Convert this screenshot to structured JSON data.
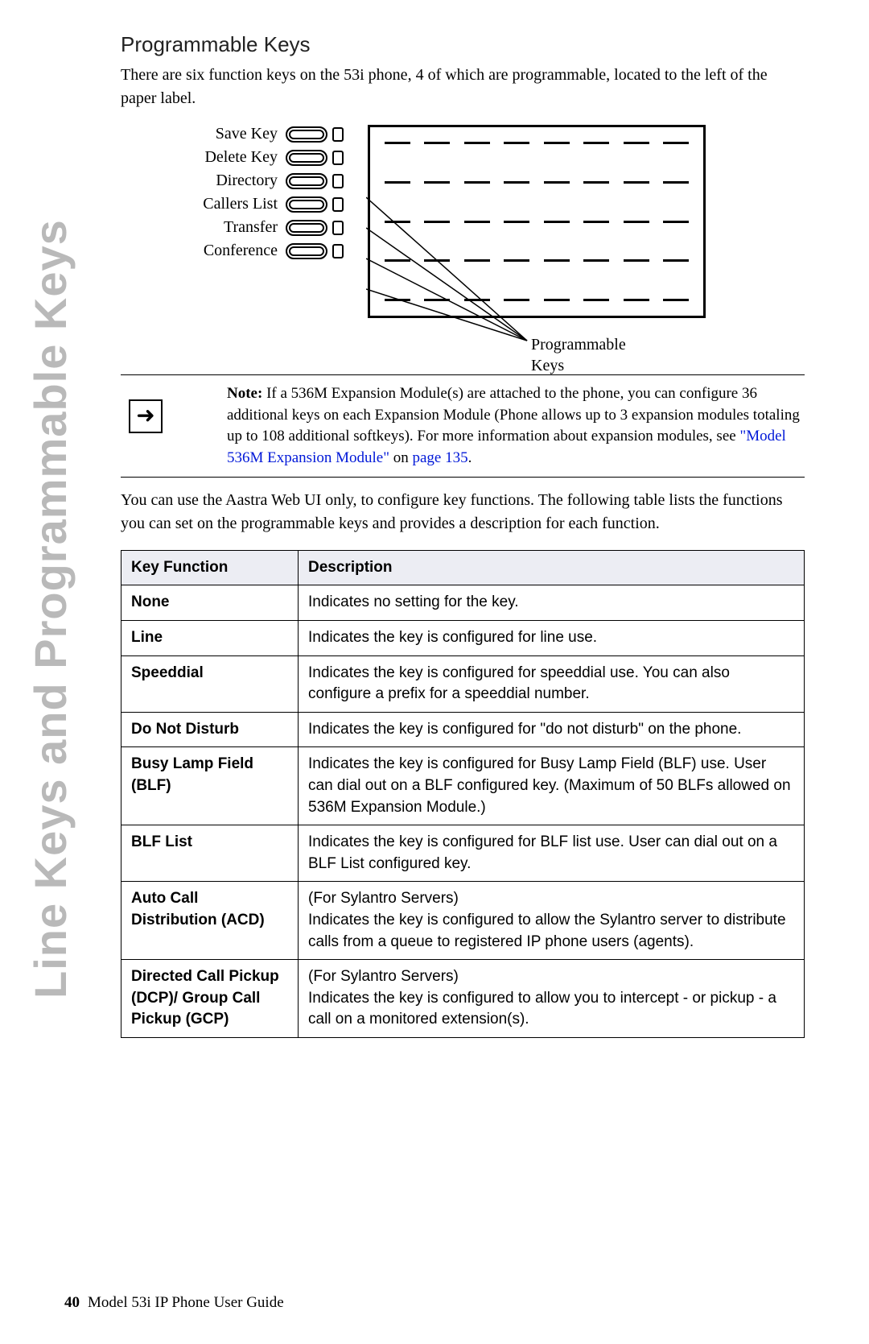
{
  "sideTitle": "Line Keys and Programmable Keys",
  "heading": "Programmable Keys",
  "introPara": "There are six function keys on the 53i phone, 4 of which are programmable, located to the left of the paper label.",
  "diagram": {
    "keyLabels": [
      "Save Key",
      "Delete Key",
      "Directory",
      "Callers List",
      "Transfer",
      "Conference"
    ],
    "calloutLine1": "Programmable",
    "calloutLine2": "Keys",
    "dashRows": 5,
    "dashesPerRow": 8
  },
  "note": {
    "bold": "Note:",
    "textPart1": " If a 536M Expansion Module(s) are attached to the phone, you can configure 36 additional keys on each Expansion Module (Phone allows up to 3 expansion modules totaling up to 108 additional softkeys). For more information about expansion modules, see ",
    "link1": "\"Model 536M Expansion Module\"",
    "textPart2": " on ",
    "link2": "page 135",
    "textPart3": "."
  },
  "midPara": "You can use the Aastra Web UI only, to configure key functions. The following table lists the functions you can set on the programmable keys and provides a description for each function.",
  "table": {
    "headers": [
      "Key Function",
      "Description"
    ],
    "rows": [
      {
        "fn": "None",
        "desc": "Indicates no setting for the key."
      },
      {
        "fn": "Line",
        "desc": "Indicates the key is configured for line use."
      },
      {
        "fn": "Speeddial",
        "desc": "Indicates the key is configured for speeddial use. You can also configure a prefix for a speeddial number."
      },
      {
        "fn": "Do Not Disturb",
        "desc": "Indicates the key is configured for \"do not disturb\" on the phone."
      },
      {
        "fn": "Busy Lamp Field (BLF)",
        "desc": "Indicates the key is configured for Busy Lamp Field (BLF) use. User can dial out on a BLF configured key. (Maximum of 50 BLFs allowed on 536M Expansion Module.)"
      },
      {
        "fn": "BLF List",
        "desc": "Indicates the key is configured for BLF list use. User can dial out on a BLF List configured key."
      },
      {
        "fn": "Auto Call Distribution (ACD)",
        "desc": "(For Sylantro Servers)\nIndicates the key is configured to allow the Sylantro server to distribute calls from a queue to registered IP phone users (agents)."
      },
      {
        "fn": "Directed Call Pickup (DCP)/ Group Call Pickup (GCP)",
        "desc": "(For Sylantro Servers)\nIndicates the key is configured to allow you to intercept - or pickup - a call on a monitored extension(s)."
      }
    ]
  },
  "footer": {
    "pageNum": "40",
    "title": "Model 53i IP Phone User Guide"
  }
}
